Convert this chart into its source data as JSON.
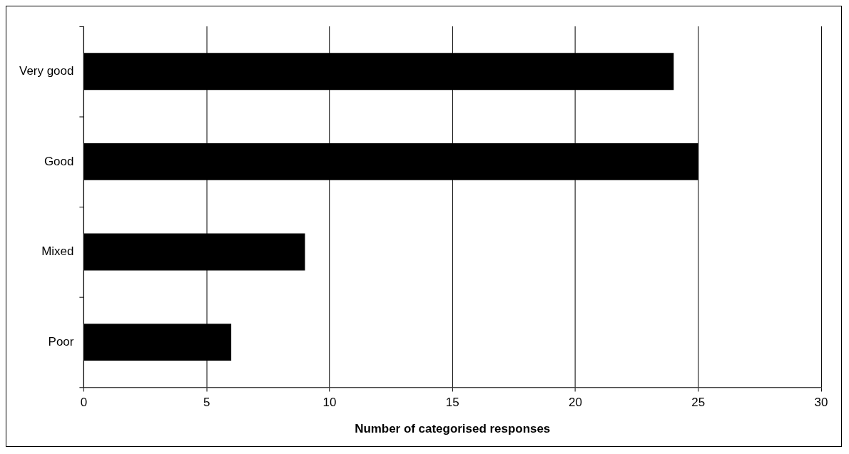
{
  "chart_data": {
    "type": "bar",
    "orientation": "horizontal",
    "xlabel": "Number of categorised responses",
    "categories": [
      "Very good",
      "Good",
      "Mixed",
      "Poor"
    ],
    "values": [
      24,
      25,
      9,
      6
    ],
    "color": "#000000",
    "xlim": [
      0,
      30
    ],
    "xticks": [
      0,
      5,
      10,
      15,
      20,
      25,
      30
    ],
    "grid": "x",
    "legend": false
  }
}
